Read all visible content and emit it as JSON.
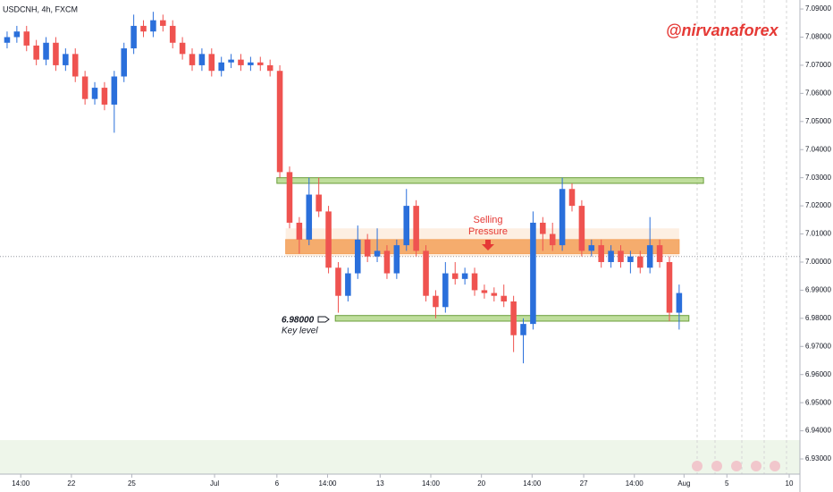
{
  "chart_data": {
    "type": "candlestick",
    "title": "USDCNH, 4h, FXCM",
    "watermark": "@nirvanaforex",
    "up_color": "#2a6fdb",
    "down_color": "#ef5350",
    "xlim": [
      -0.73,
      81.4
    ],
    "ylim": [
      6.9246,
      7.0932
    ],
    "xticks": [
      {
        "value": 1.4,
        "label": "14:00"
      },
      {
        "value": 6.6,
        "label": "22"
      },
      {
        "value": 12.8,
        "label": "25"
      },
      {
        "value": 21.3,
        "label": "Jul"
      },
      {
        "value": 27.7,
        "label": "6"
      },
      {
        "value": 32.9,
        "label": "14:00"
      },
      {
        "value": 38.3,
        "label": "13"
      },
      {
        "value": 43.5,
        "label": "14:00"
      },
      {
        "value": 48.7,
        "label": "20"
      },
      {
        "value": 53.9,
        "label": "14:00"
      },
      {
        "value": 59.2,
        "label": "27"
      },
      {
        "value": 64.4,
        "label": "14:00"
      },
      {
        "value": 69.5,
        "label": "Aug"
      },
      {
        "value": 73.9,
        "label": "5"
      },
      {
        "value": 80.3,
        "label": "10"
      }
    ],
    "yticks": [
      {
        "value": 7.09,
        "label": "7.09000"
      },
      {
        "value": 7.08,
        "label": "7.08000"
      },
      {
        "value": 7.07,
        "label": "7.07000"
      },
      {
        "value": 7.06,
        "label": "7.06000"
      },
      {
        "value": 7.05,
        "label": "7.05000"
      },
      {
        "value": 7.04,
        "label": "7.04000"
      },
      {
        "value": 7.03,
        "label": "7.03000"
      },
      {
        "value": 7.02,
        "label": "7.02000"
      },
      {
        "value": 7.01,
        "label": "7.01000"
      },
      {
        "value": 7.0,
        "label": "7.00000"
      },
      {
        "value": 6.99,
        "label": "6.99000"
      },
      {
        "value": 6.98,
        "label": "6.98000"
      },
      {
        "value": 6.97,
        "label": "6.97000"
      },
      {
        "value": 6.96,
        "label": "6.96000"
      },
      {
        "value": 6.95,
        "label": "6.95000"
      },
      {
        "value": 6.94,
        "label": "6.94000"
      },
      {
        "value": 6.93,
        "label": "6.93000"
      }
    ],
    "price_line": 7.002,
    "zones": [
      {
        "low": 7.028,
        "high": 7.03,
        "x_range": [
          27.7,
          71.5
        ],
        "color": "#8bc34a"
      },
      {
        "low": 6.979,
        "high": 6.981,
        "x_range": [
          33.7,
          70.0
        ],
        "color": "#8bc34a"
      },
      {
        "low": 7.003,
        "high": 7.008,
        "x_range": [
          28.6,
          69.0
        ],
        "color": "#f4a460"
      }
    ],
    "annotations": {
      "selling": [
        "Selling",
        "Pressure"
      ],
      "key_price": "6.98000",
      "key_label": "Key level"
    },
    "series": {
      "open": [
        7.078,
        7.08,
        7.082,
        7.077,
        7.072,
        7.078,
        7.07,
        7.074,
        7.066,
        7.058,
        7.062,
        7.056,
        7.066,
        7.076,
        7.084,
        7.082,
        7.086,
        7.084,
        7.078,
        7.074,
        7.07,
        7.074,
        7.068,
        7.071,
        7.072,
        7.07,
        7.071,
        7.07,
        7.068,
        7.032,
        7.014,
        7.008,
        7.024,
        7.018,
        6.998,
        6.988,
        6.996,
        7.008,
        7.002,
        7.004,
        6.996,
        7.006,
        7.02,
        7.004,
        6.988,
        6.984,
        6.996,
        6.994,
        6.996,
        6.99,
        6.989,
        6.988,
        6.986,
        6.974,
        6.978,
        7.014,
        7.01,
        7.006,
        7.026,
        7.02,
        7.004,
        7.006,
        7.0,
        7.004,
        7.0,
        7.002,
        6.998,
        7.006,
        7.0,
        6.982
      ],
      "high": [
        7.082,
        7.084,
        7.084,
        7.079,
        7.08,
        7.08,
        7.076,
        7.076,
        7.068,
        7.064,
        7.064,
        7.068,
        7.078,
        7.088,
        7.086,
        7.089,
        7.088,
        7.086,
        7.08,
        7.076,
        7.076,
        7.076,
        7.073,
        7.074,
        7.074,
        7.073,
        7.073,
        7.072,
        7.07,
        7.034,
        7.016,
        7.03,
        7.03,
        7.02,
        7.0,
        6.998,
        7.013,
        7.01,
        7.012,
        7.006,
        7.008,
        7.026,
        7.022,
        7.006,
        6.99,
        7.0,
        7.0,
        6.998,
        6.998,
        6.992,
        6.991,
        6.992,
        6.988,
        6.98,
        7.018,
        7.016,
        7.014,
        7.03,
        7.028,
        7.022,
        7.008,
        7.008,
        7.006,
        7.006,
        7.004,
        7.004,
        7.016,
        7.008,
        7.002,
        6.992
      ],
      "low": [
        7.076,
        7.078,
        7.075,
        7.07,
        7.07,
        7.068,
        7.068,
        7.064,
        7.056,
        7.056,
        7.054,
        7.046,
        7.064,
        7.074,
        7.08,
        7.08,
        7.082,
        7.076,
        7.072,
        7.068,
        7.068,
        7.066,
        7.066,
        7.069,
        7.068,
        7.068,
        7.068,
        7.066,
        7.03,
        7.012,
        7.003,
        7.006,
        7.016,
        6.996,
        6.982,
        6.986,
        6.994,
        7.0,
        7.0,
        6.994,
        6.994,
        7.004,
        7.002,
        6.986,
        6.98,
        6.982,
        6.992,
        6.992,
        6.988,
        6.987,
        6.986,
        6.984,
        6.968,
        6.964,
        6.976,
        7.004,
        7.004,
        7.004,
        7.018,
        7.002,
        7.002,
        6.998,
        6.998,
        6.998,
        6.996,
        6.996,
        6.996,
        6.998,
        6.979,
        6.976
      ],
      "close": [
        7.08,
        7.082,
        7.077,
        7.072,
        7.078,
        7.07,
        7.074,
        7.066,
        7.058,
        7.062,
        7.056,
        7.066,
        7.076,
        7.084,
        7.082,
        7.086,
        7.084,
        7.078,
        7.074,
        7.07,
        7.074,
        7.068,
        7.071,
        7.072,
        7.07,
        7.071,
        7.07,
        7.068,
        7.032,
        7.014,
        7.008,
        7.024,
        7.018,
        6.998,
        6.988,
        6.996,
        7.008,
        7.002,
        7.004,
        6.996,
        7.006,
        7.02,
        7.004,
        6.988,
        6.984,
        6.996,
        6.994,
        6.996,
        6.99,
        6.989,
        6.988,
        6.986,
        6.974,
        6.978,
        7.014,
        7.01,
        7.006,
        7.026,
        7.02,
        7.004,
        7.006,
        7.0,
        7.004,
        7.0,
        7.002,
        6.998,
        7.006,
        7.0,
        6.982,
        6.989
      ]
    }
  }
}
